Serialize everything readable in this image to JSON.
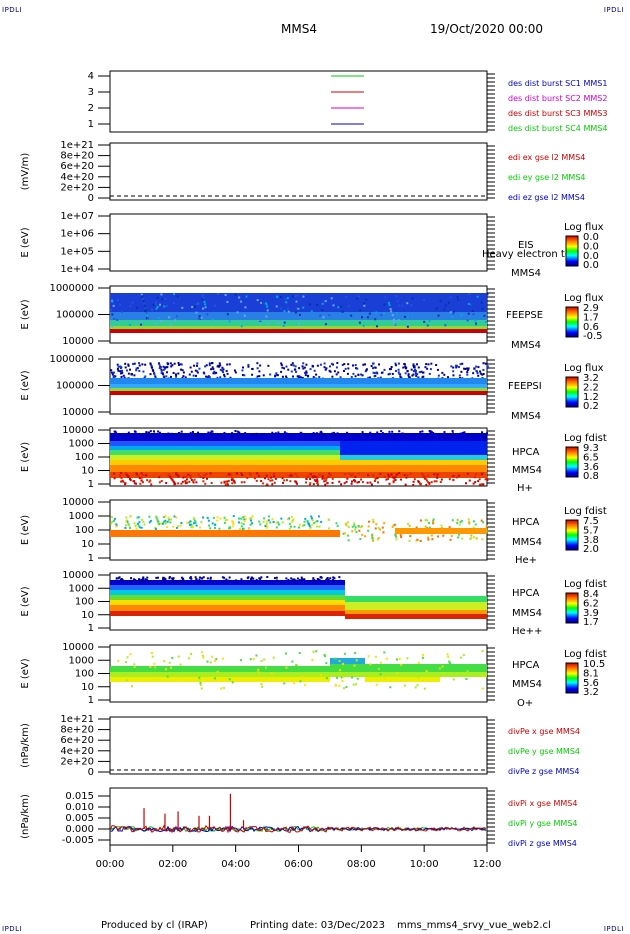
{
  "corners": {
    "tl": "IPDLI",
    "tr": "IPDLI",
    "bl": "IPDLI",
    "br": "IPDLI"
  },
  "header": {
    "title": "MMS4",
    "date": "19/Oct/2020 00:00"
  },
  "footer": {
    "produced": "Produced by cl (IRAP)",
    "printing": "Printing date: 03/Dec/2023",
    "script": "mms_mms4_srvy_vue_web2.cl"
  },
  "colors": {
    "blue": "#0000cc",
    "magenta": "#cc00cc",
    "red": "#cc0000",
    "green": "#00cc00"
  },
  "chart_data": [
    {
      "type": "line",
      "panel": "burst",
      "ylim": [
        0.5,
        4.5
      ],
      "yticks": [
        "1",
        "2",
        "3",
        "4"
      ],
      "legend": [
        {
          "text": "des dist burst SC1 MMS1",
          "color": "#0000cc"
        },
        {
          "text": "des dist burst SC2 MMS2",
          "color": "#cc00cc"
        },
        {
          "text": "des dist burst SC3 MMS3",
          "color": "#cc0000"
        },
        {
          "text": "des dist burst SC4 MMS4",
          "color": "#00cc00"
        }
      ],
      "series": [
        {
          "values": [
            4
          ],
          "color": "#00cc00"
        },
        {
          "values": [
            3
          ],
          "color": "#cc0000"
        },
        {
          "values": [
            2
          ],
          "color": "#cc00cc"
        },
        {
          "values": [
            1
          ],
          "color": "#0000cc"
        }
      ]
    },
    {
      "type": "line",
      "panel": "edi",
      "ylabel": "(mV/m)",
      "yticks": [
        "1e+21",
        "8e+20",
        "6e+20",
        "4e+20",
        "2e+20",
        "0"
      ],
      "legend": [
        {
          "text": "edi ex gse l2 MMS4",
          "color": "#cc0000"
        },
        {
          "text": "edi ey gse l2 MMS4",
          "color": "#00cc00"
        },
        {
          "text": "edi ez gse l2 MMS4",
          "color": "#0000cc"
        }
      ]
    },
    {
      "type": "heatmap",
      "panel": "eis",
      "ylabel": "E (eV)",
      "yticks": [
        "1e+07",
        "1e+06",
        "1e+05",
        "1e+04"
      ],
      "labels": [
        "EIS",
        "Heavy electron tof",
        "MMS4"
      ],
      "colorbar": {
        "title": "Log flux",
        "values": [
          "0.0",
          "0.0",
          "0.0",
          "0.0"
        ]
      }
    },
    {
      "type": "heatmap",
      "panel": "feepse",
      "ylabel": "E (eV)",
      "yticks": [
        "1000000",
        "100000",
        "10000"
      ],
      "labels": [
        "FEEPSE",
        "MMS4"
      ],
      "colorbar": {
        "title": "Log flux",
        "values": [
          "2.9",
          "1.7",
          "0.6",
          "-0.5"
        ]
      }
    },
    {
      "type": "heatmap",
      "panel": "feepsi",
      "ylabel": "E (eV)",
      "yticks": [
        "1000000",
        "100000",
        "10000"
      ],
      "labels": [
        "FEEPSI",
        "MMS4"
      ],
      "colorbar": {
        "title": "Log flux",
        "values": [
          "3.2",
          "2.2",
          "1.2",
          "0.2"
        ]
      }
    },
    {
      "type": "heatmap",
      "panel": "hpca-h",
      "ylabel": "E (eV)",
      "yticks": [
        "10000",
        "1000",
        "100",
        "10",
        "1"
      ],
      "labels": [
        "HPCA",
        "MMS4",
        "H+"
      ],
      "colorbar": {
        "title": "Log fdist",
        "values": [
          "9.3",
          "6.5",
          "3.6",
          "0.8"
        ]
      }
    },
    {
      "type": "heatmap",
      "panel": "hpca-he",
      "ylabel": "E (eV)",
      "yticks": [
        "10000",
        "1000",
        "100",
        "10",
        "1"
      ],
      "labels": [
        "HPCA",
        "MMS4",
        "He+"
      ],
      "colorbar": {
        "title": "Log fdist",
        "values": [
          "7.5",
          "5.7",
          "3.8",
          "2.0"
        ]
      }
    },
    {
      "type": "heatmap",
      "panel": "hpca-hepp",
      "ylabel": "E (eV)",
      "yticks": [
        "10000",
        "1000",
        "100",
        "10",
        "1"
      ],
      "labels": [
        "HPCA",
        "MMS4",
        "He++"
      ],
      "colorbar": {
        "title": "Log fdist",
        "values": [
          "8.4",
          "6.2",
          "3.9",
          "1.7"
        ]
      }
    },
    {
      "type": "heatmap",
      "panel": "hpca-o",
      "ylabel": "E (eV)",
      "yticks": [
        "10000",
        "1000",
        "100",
        "10",
        "1"
      ],
      "labels": [
        "HPCA",
        "MMS4",
        "O+"
      ],
      "colorbar": {
        "title": "Log fdist",
        "values": [
          "10.5",
          "8.1",
          "5.6",
          "3.2"
        ]
      }
    },
    {
      "type": "line",
      "panel": "divpe",
      "ylabel": "(nPa/km)",
      "yticks": [
        "1e+21",
        "8e+20",
        "6e+20",
        "4e+20",
        "2e+20",
        "0"
      ],
      "legend": [
        {
          "text": "divPe x gse MMS4",
          "color": "#cc0000"
        },
        {
          "text": "divPe y gse MMS4",
          "color": "#00cc00"
        },
        {
          "text": "divPe z gse MMS4",
          "color": "#0000cc"
        }
      ]
    },
    {
      "type": "line",
      "panel": "divpi",
      "ylabel": "(nPa/km)",
      "ylim": [
        -0.008,
        0.018
      ],
      "yticks": [
        "0.015",
        "0.010",
        "0.005",
        "0.000",
        "-0.005"
      ],
      "legend": [
        {
          "text": "divPi x gse MMS4",
          "color": "#cc0000"
        },
        {
          "text": "divPi y gse MMS4",
          "color": "#00cc00"
        },
        {
          "text": "divPi z gse MMS4",
          "color": "#0000cc"
        }
      ],
      "spikes": [
        {
          "x": "01:05",
          "y": 0.0095
        },
        {
          "x": "01:45",
          "y": 0.007
        },
        {
          "x": "02:10",
          "y": 0.008
        },
        {
          "x": "02:50",
          "y": 0.006
        },
        {
          "x": "03:10",
          "y": 0.006
        },
        {
          "x": "03:50",
          "y": 0.016
        },
        {
          "x": "04:15",
          "y": 0.004
        }
      ]
    }
  ],
  "xaxis": {
    "ticks": [
      "00:00",
      "02:00",
      "04:00",
      "06:00",
      "08:00",
      "10:00",
      "12:00"
    ]
  }
}
